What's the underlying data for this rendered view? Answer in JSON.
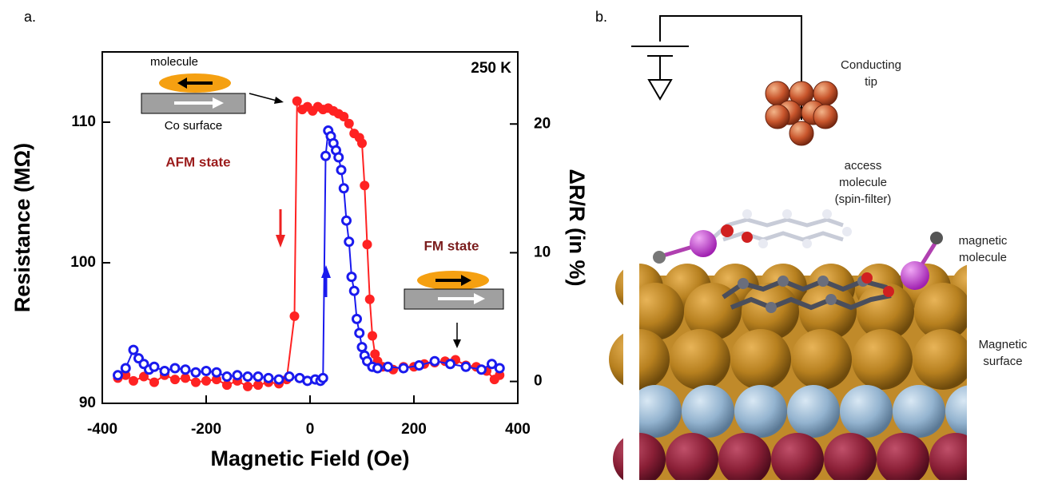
{
  "chart_data": {
    "type": "line",
    "panel_label": "a.",
    "x_label": "Magnetic Field (Oe)",
    "y_label": "Resistance (MΩ)",
    "y2_label": "ΔR/R (in %)",
    "annotations": [
      "molecule",
      "Co surface",
      "AFM state",
      "FM state",
      "250 K"
    ],
    "xlim": [
      -400,
      400
    ],
    "xticks": [
      -400,
      -200,
      0,
      200,
      400
    ],
    "ylim": [
      90,
      115
    ],
    "yticks": [
      90,
      100,
      110
    ],
    "y2lim": [
      -1.7,
      25.6
    ],
    "y2ticks": [
      0,
      10,
      20
    ],
    "series": [
      {
        "color": "#ff2222",
        "marker": "filled",
        "x": [
          -370,
          -355,
          -340,
          -320,
          -300,
          -280,
          -260,
          -240,
          -220,
          -200,
          -180,
          -160,
          -140,
          -120,
          -100,
          -80,
          -60,
          -45,
          -30,
          -25,
          -15,
          -5,
          5,
          15,
          25,
          35,
          45,
          55,
          65,
          75,
          85,
          95,
          100,
          105,
          110,
          115,
          120,
          125,
          130,
          140,
          160,
          180,
          200,
          220,
          240,
          260,
          280,
          300,
          320,
          340,
          355,
          365
        ],
        "values": [
          91.8,
          92.0,
          91.6,
          91.9,
          91.5,
          92.0,
          91.7,
          91.8,
          91.5,
          91.6,
          91.7,
          91.3,
          91.6,
          91.2,
          91.3,
          91.5,
          91.4,
          91.7,
          96.2,
          111.5,
          110.9,
          111.1,
          110.8,
          111.1,
          110.9,
          111.0,
          110.8,
          110.6,
          110.4,
          109.9,
          109.2,
          108.9,
          108.5,
          105.5,
          101.3,
          97.4,
          94.8,
          93.5,
          93.0,
          92.6,
          92.4,
          92.6,
          92.6,
          92.8,
          92.9,
          93.0,
          93.1,
          92.7,
          92.6,
          92.3,
          91.7,
          92.0
        ]
      },
      {
        "color": "#1a1aee",
        "marker": "open",
        "x": [
          -370,
          -355,
          -340,
          -330,
          -320,
          -310,
          -300,
          -280,
          -260,
          -240,
          -220,
          -200,
          -180,
          -160,
          -140,
          -120,
          -100,
          -80,
          -60,
          -40,
          -20,
          -5,
          10,
          20,
          25,
          30,
          35,
          40,
          45,
          50,
          55,
          60,
          65,
          70,
          75,
          80,
          85,
          90,
          95,
          100,
          105,
          110,
          120,
          130,
          150,
          180,
          210,
          240,
          270,
          300,
          330,
          350,
          365
        ],
        "values": [
          92.0,
          92.5,
          93.8,
          93.2,
          92.8,
          92.4,
          92.6,
          92.3,
          92.5,
          92.4,
          92.2,
          92.3,
          92.2,
          91.9,
          92.0,
          91.9,
          91.9,
          91.8,
          91.7,
          91.9,
          91.8,
          91.6,
          91.7,
          91.6,
          91.8,
          107.6,
          109.4,
          109.0,
          108.5,
          108.0,
          107.5,
          106.6,
          105.3,
          103.0,
          101.5,
          99.0,
          98.0,
          96.0,
          95.0,
          94.0,
          93.4,
          93.0,
          92.6,
          92.5,
          92.6,
          92.5,
          92.7,
          93.0,
          92.8,
          92.6,
          92.4,
          92.8,
          92.5
        ]
      }
    ]
  },
  "diagram": {
    "panel_label": "b.",
    "labels": [
      {
        "lines": [
          "Conducting",
          "tip"
        ]
      },
      {
        "lines": [
          "access",
          "molecule",
          "(spin-filter)"
        ]
      },
      {
        "lines": [
          "magnetic",
          "molecule"
        ]
      },
      {
        "lines": [
          "Magnetic",
          "surface"
        ]
      }
    ]
  }
}
